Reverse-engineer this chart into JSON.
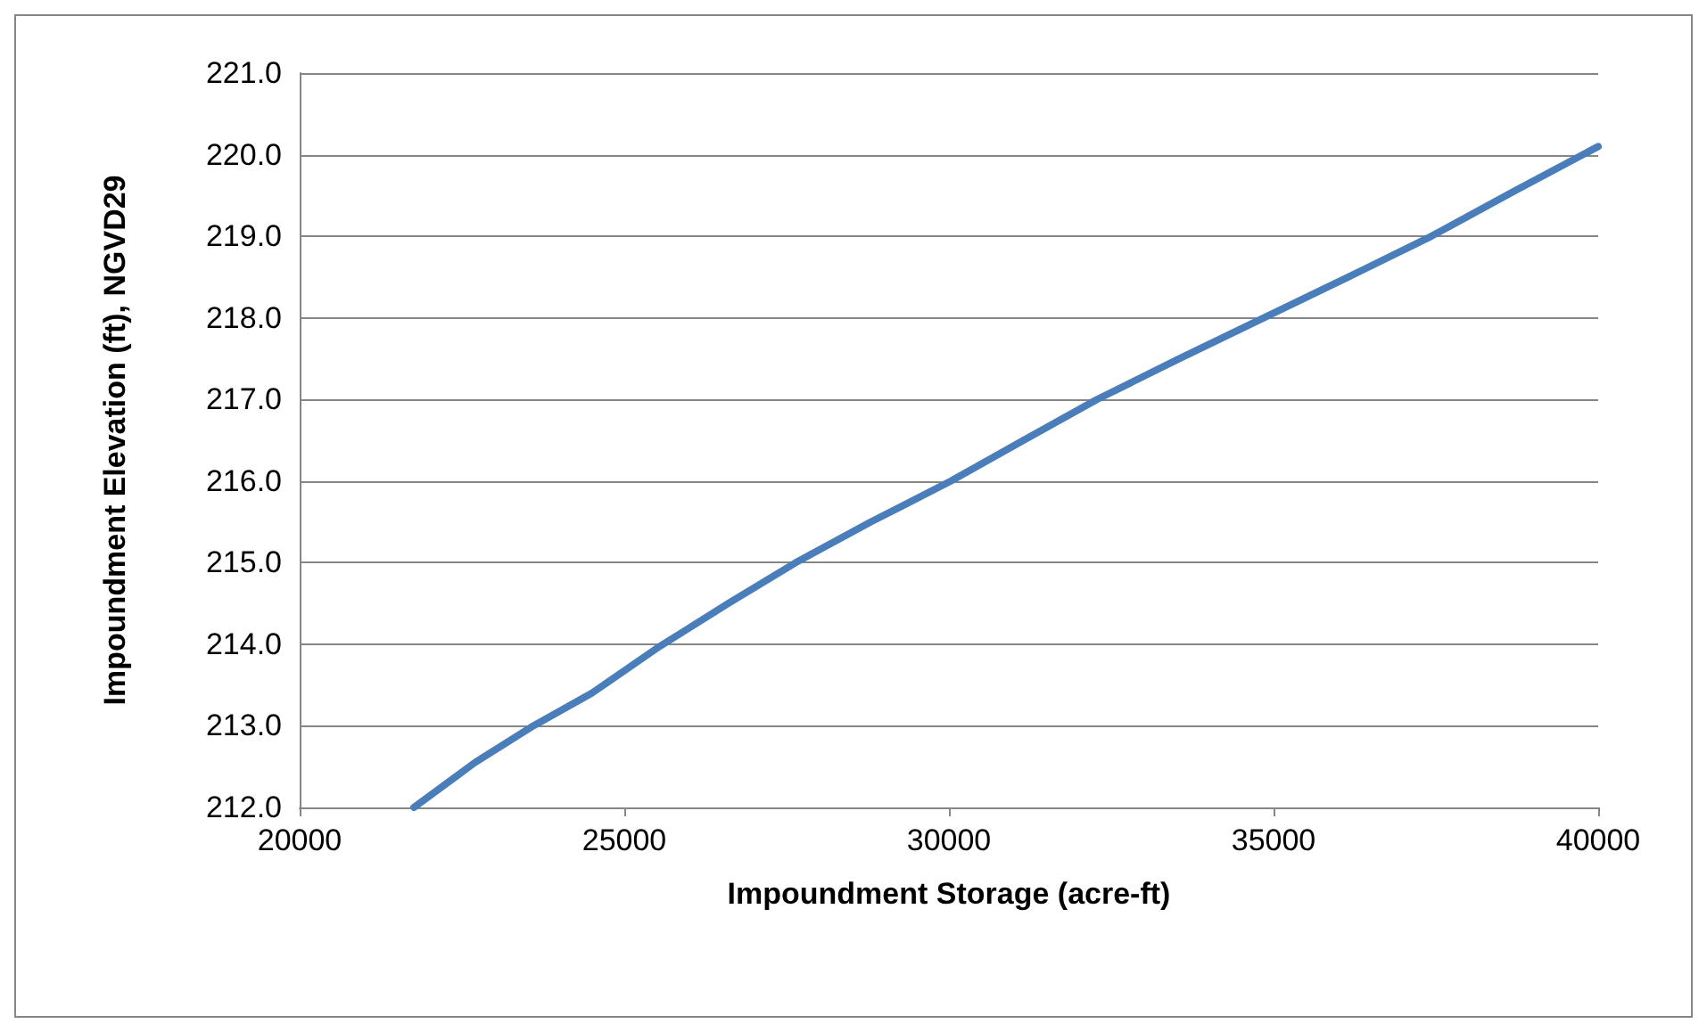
{
  "chart_data": {
    "type": "line",
    "xlabel": "Impoundment Storage (acre-ft)",
    "ylabel": "Impoundment Elevation (ft), NGVD29",
    "x": [
      21760,
      22700,
      23600,
      24500,
      25500,
      26600,
      27640,
      28800,
      30030,
      31150,
      32280,
      33550,
      34850,
      36150,
      37430,
      38700,
      40000
    ],
    "series": [
      {
        "color": "#4a7ebb",
        "values": [
          212.0,
          212.55,
          213.0,
          213.4,
          213.95,
          214.5,
          215.0,
          215.5,
          216.0,
          216.5,
          217.0,
          217.5,
          218.0,
          218.5,
          219.0,
          219.55,
          220.1
        ]
      }
    ],
    "xlim": [
      20000,
      40000
    ],
    "xticks": [
      20000,
      25000,
      30000,
      35000,
      40000
    ],
    "ylim": [
      212,
      221
    ],
    "yticks": [
      {
        "value": 212,
        "label": "212.0"
      },
      {
        "value": 213,
        "label": "213.0"
      },
      {
        "value": 214,
        "label": "214.0"
      },
      {
        "value": 215,
        "label": "215.0"
      },
      {
        "value": 216,
        "label": "216.0"
      },
      {
        "value": 217,
        "label": "217.0"
      },
      {
        "value": 218,
        "label": "218.0"
      },
      {
        "value": 219,
        "label": "219.0"
      },
      {
        "value": 220,
        "label": "220.0"
      },
      {
        "value": 221,
        "label": "221.0"
      }
    ],
    "grid": "y",
    "marker": "none",
    "line_style": "solid"
  }
}
